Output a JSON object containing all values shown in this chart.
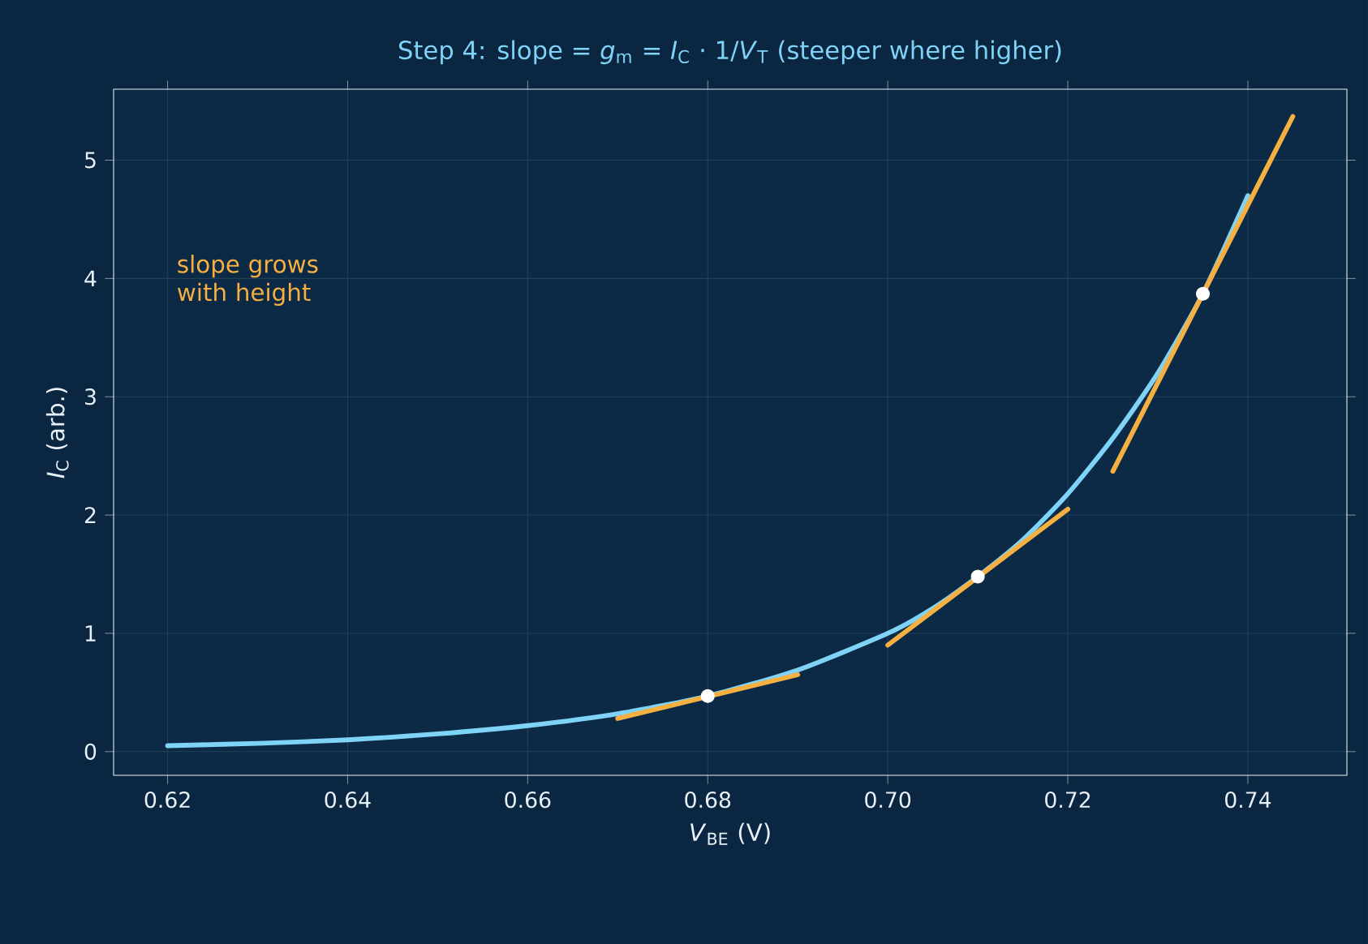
{
  "chart_data": {
    "type": "line",
    "title": "Step 4: slope = *g*$_{m}$ = *I*$_{C}$ · 1/*V*$_{T}$  (steeper where higher)",
    "xlabel": "*V*$_{BE}$  (V)",
    "ylabel": "*I*$_{C}$  (arb.)",
    "annotations": [
      "slope grows\nwith height"
    ],
    "series": [
      {
        "color": "#7fd3f7",
        "x": [
          0.62,
          0.63,
          0.64,
          0.65,
          0.66,
          0.67,
          0.68,
          0.69,
          0.7,
          0.705,
          0.71,
          0.715,
          0.72,
          0.725,
          0.73,
          0.735,
          0.74
        ],
        "values": [
          0.05,
          0.07,
          0.1,
          0.15,
          0.22,
          0.32,
          0.47,
          0.69,
          1.0,
          1.21,
          1.48,
          1.79,
          2.18,
          2.65,
          3.2,
          3.87,
          4.7
        ]
      },
      {
        "color": "#f5b041",
        "x": [
          0.67,
          0.69
        ],
        "values": [
          0.28,
          0.65
        ]
      },
      {
        "color": "#f5b041",
        "x": [
          0.7,
          0.72
        ],
        "values": [
          0.9,
          2.05
        ]
      },
      {
        "color": "#f5b041",
        "x": [
          0.725,
          0.745
        ],
        "values": [
          2.37,
          5.37
        ]
      },
      {
        "type": "scatter",
        "color": "#ffffff",
        "marker": "circle",
        "x": [
          0.68,
          0.71,
          0.735
        ],
        "values": [
          0.47,
          1.48,
          3.87
        ]
      }
    ],
    "xlim": [
      0.614,
      0.751
    ],
    "ylim": [
      -0.2,
      5.6
    ],
    "xticks": [
      0.62,
      0.64,
      0.66,
      0.68,
      {
        "value": 0.7,
        "label": "0.70"
      },
      0.72,
      0.74
    ],
    "yticks": [
      0,
      1,
      2,
      3,
      4,
      5
    ],
    "grid": true,
    "line_style": "solid"
  }
}
